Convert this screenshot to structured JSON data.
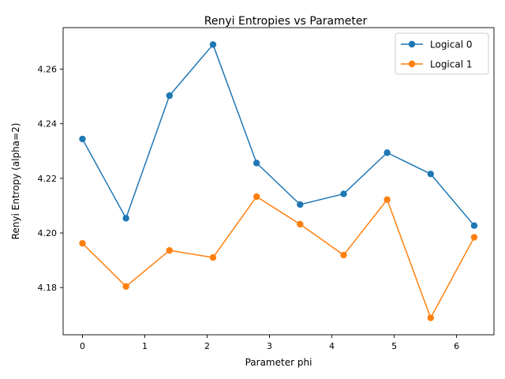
{
  "chart_data": {
    "type": "line",
    "title": "Renyi Entropies vs Parameter",
    "xlabel": "Parameter phi",
    "ylabel": "Renyi Entropy (alpha=2)",
    "xlim": [
      -0.31,
      6.6
    ],
    "ylim": [
      4.1627,
      4.2752
    ],
    "xticks": [
      0,
      1,
      2,
      3,
      4,
      5,
      6
    ],
    "xtick_labels": [
      "0",
      "1",
      "2",
      "3",
      "4",
      "5",
      "6"
    ],
    "yticks": [
      4.18,
      4.2,
      4.22,
      4.24,
      4.26
    ],
    "ytick_labels": [
      "4.18",
      "4.20",
      "4.22",
      "4.24",
      "4.26"
    ],
    "grid": false,
    "legend_position": "top-right",
    "x": [
      0.0,
      0.698,
      1.396,
      2.094,
      2.793,
      3.491,
      4.189,
      4.887,
      5.585,
      6.283
    ],
    "series": [
      {
        "name": "Logical 0",
        "color": "#1f77b4",
        "values": [
          4.2344,
          4.2054,
          4.2503,
          4.269,
          4.2256,
          4.2104,
          4.2143,
          4.2294,
          4.2216,
          4.2027
        ]
      },
      {
        "name": "Logical 1",
        "color": "#ff7f0e",
        "values": [
          4.1962,
          4.1804,
          4.1936,
          4.191,
          4.2133,
          4.2032,
          4.1919,
          4.2122,
          4.1689,
          4.1984
        ]
      }
    ]
  }
}
